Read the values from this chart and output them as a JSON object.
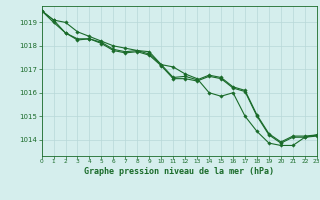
{
  "background_color": "#d5eeed",
  "grid_color": "#b8d8d8",
  "line_color": "#1a6b2a",
  "marker_color": "#1a6b2a",
  "title": "Graphe pression niveau de la mer (hPa)",
  "xlim": [
    0,
    23
  ],
  "ylim": [
    1013.3,
    1019.7
  ],
  "yticks": [
    1014,
    1015,
    1016,
    1017,
    1018,
    1019
  ],
  "xticks": [
    0,
    1,
    2,
    3,
    4,
    5,
    6,
    7,
    8,
    9,
    10,
    11,
    12,
    13,
    14,
    15,
    16,
    17,
    18,
    19,
    20,
    21,
    22,
    23
  ],
  "series": [
    [
      1019.5,
      1019.1,
      1019.0,
      1018.6,
      1018.4,
      1018.2,
      1018.0,
      1017.9,
      1017.8,
      1017.75,
      1017.2,
      1017.1,
      1016.8,
      1016.6,
      1016.0,
      1015.85,
      1016.0,
      1015.0,
      1014.35,
      1013.85,
      1013.75,
      1013.75,
      1014.1,
      1014.2
    ],
    [
      1019.5,
      1019.0,
      1018.55,
      1018.25,
      1018.3,
      1018.1,
      1017.8,
      1017.7,
      1017.75,
      1017.6,
      1017.15,
      1016.6,
      1016.6,
      1016.5,
      1016.7,
      1016.6,
      1016.2,
      1016.05,
      1015.0,
      1014.2,
      1013.85,
      1014.1,
      1014.1,
      1014.15
    ],
    [
      1019.5,
      1019.1,
      1018.55,
      1018.3,
      1018.3,
      1018.15,
      1017.85,
      1017.75,
      1017.8,
      1017.65,
      1017.2,
      1016.65,
      1016.7,
      1016.55,
      1016.75,
      1016.65,
      1016.25,
      1016.1,
      1015.05,
      1014.25,
      1013.9,
      1014.15,
      1014.15,
      1014.2
    ]
  ]
}
